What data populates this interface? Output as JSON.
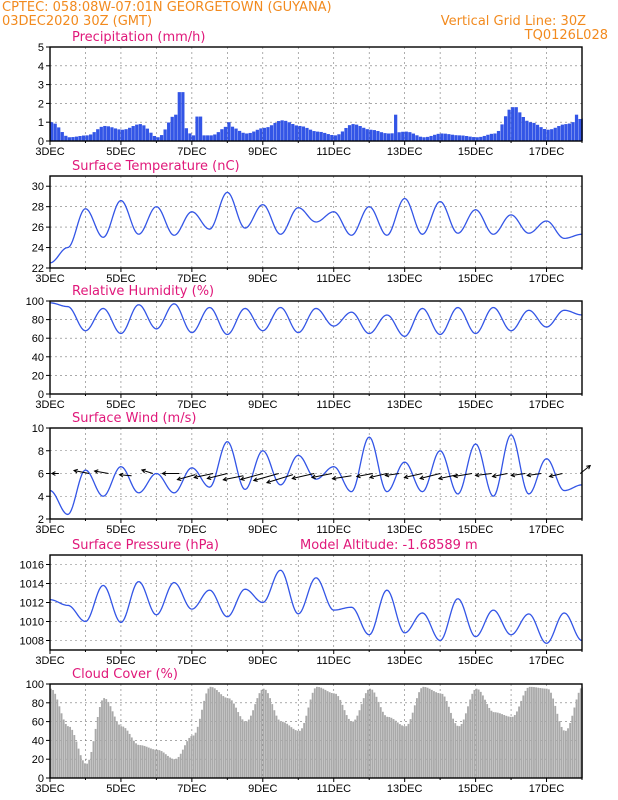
{
  "header": {
    "left_line1": "CPTEC:  058:08W-07:01N  GEORGETOWN (GUYANA)",
    "left_line2": "03DEC2020 30Z (GMT)",
    "right_line1": "Vertical Grid Line: 30Z",
    "right_line2": "TQ0126L028"
  },
  "colors": {
    "header": "#f28a1e",
    "title": "#e0187a",
    "series": "#3355e6",
    "cloud": "#a9a9a9",
    "wind_vector": "#000000"
  },
  "x_axis": {
    "start_day": 3,
    "end_day": 18,
    "tick_labels": [
      "3DEC",
      "5DEC",
      "7DEC",
      "9DEC",
      "11DEC",
      "13DEC",
      "15DEC",
      "17DEC"
    ],
    "tick_days": [
      3,
      5,
      7,
      9,
      11,
      13,
      15,
      17
    ]
  },
  "chart_data": [
    {
      "id": "precip",
      "type": "bar",
      "title": "Precipitation (mm/h)",
      "ylim": [
        0,
        5
      ],
      "yticks": [
        0,
        1,
        2,
        3,
        4,
        5
      ],
      "grid": true,
      "x_unit": "day of December 2020",
      "x": [
        3.0,
        3.5,
        4.0,
        4.5,
        5.0,
        5.5,
        6.0,
        6.5,
        7.0,
        7.5,
        8.0,
        8.5,
        9.0,
        9.5,
        10.0,
        10.5,
        11.0,
        11.5,
        12.0,
        12.5,
        13.0,
        13.5,
        14.0,
        14.5,
        15.0,
        15.5,
        16.0,
        16.5,
        17.0,
        17.5,
        18.0
      ],
      "values": [
        1.0,
        0.2,
        0.3,
        0.8,
        0.6,
        0.9,
        0.2,
        1.4,
        0.3,
        0.3,
        0.8,
        0.4,
        0.7,
        1.1,
        0.8,
        0.5,
        0.3,
        0.9,
        0.6,
        0.4,
        0.5,
        0.2,
        0.4,
        0.3,
        0.2,
        0.4,
        1.8,
        1.0,
        0.6,
        0.9,
        1.2
      ],
      "peak_x": [
        6.65,
        7.15,
        8.0,
        12.7,
        16.1,
        17.8
      ],
      "peak_values": [
        2.6,
        1.3,
        1.0,
        1.4,
        1.8,
        1.4
      ]
    },
    {
      "id": "temp",
      "type": "line",
      "title": "Surface Temperature (nC)",
      "ylim": [
        22,
        31
      ],
      "yticks": [
        22,
        24,
        26,
        28,
        30
      ],
      "grid": true,
      "x": [
        3.0,
        3.5,
        4.0,
        4.5,
        5.0,
        5.5,
        6.0,
        6.5,
        7.0,
        7.5,
        8.0,
        8.5,
        9.0,
        9.5,
        10.0,
        10.5,
        11.0,
        11.5,
        12.0,
        12.5,
        13.0,
        13.5,
        14.0,
        14.5,
        15.0,
        15.5,
        16.0,
        16.5,
        17.0,
        17.5,
        18.0
      ],
      "values": [
        22.5,
        24.0,
        27.8,
        25.0,
        28.6,
        25.3,
        28.0,
        25.2,
        27.5,
        25.8,
        29.4,
        25.9,
        28.2,
        25.3,
        27.9,
        26.5,
        27.5,
        25.2,
        28.0,
        25.2,
        28.8,
        25.3,
        28.5,
        25.4,
        27.7,
        25.3,
        27.2,
        25.4,
        26.6,
        24.9,
        25.3
      ]
    },
    {
      "id": "rh",
      "type": "line",
      "title": "Relative Humidity (%)",
      "ylim": [
        0,
        100
      ],
      "yticks": [
        0,
        20,
        40,
        60,
        80,
        100
      ],
      "grid": true,
      "x": [
        3.0,
        3.5,
        4.0,
        4.5,
        5.0,
        5.5,
        6.0,
        6.5,
        7.0,
        7.5,
        8.0,
        8.5,
        9.0,
        9.5,
        10.0,
        10.5,
        11.0,
        11.5,
        12.0,
        12.5,
        13.0,
        13.5,
        14.0,
        14.5,
        15.0,
        15.5,
        16.0,
        16.5,
        17.0,
        17.5,
        18.0
      ],
      "values": [
        98,
        94,
        68,
        92,
        65,
        96,
        70,
        97,
        66,
        93,
        64,
        92,
        68,
        93,
        66,
        92,
        73,
        88,
        65,
        85,
        62,
        92,
        64,
        93,
        65,
        93,
        68,
        90,
        72,
        90,
        85
      ]
    },
    {
      "id": "wind",
      "type": "line",
      "title": "Surface Wind (m/s)",
      "ylim": [
        2,
        10
      ],
      "yticks": [
        2,
        4,
        6,
        8,
        10
      ],
      "grid": true,
      "x": [
        3.0,
        3.5,
        4.0,
        4.5,
        5.0,
        5.5,
        6.0,
        6.5,
        7.0,
        7.5,
        8.0,
        8.5,
        9.0,
        9.5,
        10.0,
        10.5,
        11.0,
        11.5,
        12.0,
        12.5,
        13.0,
        13.5,
        14.0,
        14.5,
        15.0,
        15.5,
        16.0,
        16.5,
        17.0,
        17.5,
        18.0
      ],
      "values": [
        4.5,
        2.4,
        6.3,
        4.0,
        6.6,
        4.3,
        6.0,
        4.3,
        6.5,
        4.8,
        8.8,
        4.6,
        8.0,
        5.0,
        7.6,
        5.5,
        6.6,
        4.4,
        9.2,
        4.4,
        7.0,
        4.4,
        8.0,
        4.2,
        8.6,
        4.0,
        9.4,
        4.2,
        7.3,
        4.5,
        5.0
      ],
      "vectors": {
        "x": [
          3.25,
          4.1,
          4.65,
          5.3,
          5.9,
          6.65,
          7.1,
          7.6,
          8.0,
          8.45,
          9.0,
          9.45,
          9.85,
          10.45,
          10.95,
          11.5,
          12.1,
          12.5,
          12.85,
          13.5,
          14.0,
          14.5,
          14.9,
          15.45,
          15.9,
          16.4,
          16.85,
          17.45,
          17.95
        ],
        "y": [
          6.0,
          6.0,
          6.0,
          5.8,
          6.0,
          6.0,
          5.9,
          6.0,
          6.0,
          5.8,
          6.0,
          6.0,
          5.9,
          6.0,
          6.0,
          5.8,
          6.0,
          6.0,
          6.0,
          6.0,
          6.0,
          5.9,
          6.0,
          6.0,
          6.0,
          6.0,
          6.0,
          6.0,
          6.0
        ],
        "u": [
          -0.7,
          -1.5,
          -1.4,
          -1.2,
          -1.1,
          -1.7,
          -1.8,
          -1.9,
          -2.0,
          -2.0,
          -2.2,
          -2.5,
          -2.6,
          -2.2,
          -2.0,
          -1.9,
          -1.6,
          -1.7,
          -1.4,
          -1.8,
          -2.0,
          -1.9,
          -1.8,
          -1.6,
          -1.5,
          -1.4,
          -1.4,
          -1.3,
          1.0
        ],
        "v": [
          0.0,
          0.3,
          0.25,
          0.1,
          0.35,
          0.0,
          -0.5,
          -0.4,
          -0.5,
          -0.4,
          -0.6,
          -0.7,
          -0.8,
          -0.5,
          -0.4,
          -0.3,
          -0.3,
          -0.4,
          -0.2,
          -0.4,
          -0.5,
          -0.4,
          -0.3,
          -0.2,
          -0.3,
          -0.2,
          -0.2,
          -0.3,
          0.8
        ]
      }
    },
    {
      "id": "pres",
      "type": "line",
      "title": "Surface Pressure (hPa)",
      "title_right": "Model Altitude: -1.68589 m",
      "ylim": [
        1007,
        1017
      ],
      "yticks": [
        1008,
        1010,
        1012,
        1014,
        1016
      ],
      "grid": true,
      "x": [
        3.0,
        3.5,
        4.0,
        4.5,
        5.0,
        5.5,
        6.0,
        6.5,
        7.0,
        7.5,
        8.0,
        8.5,
        9.0,
        9.5,
        10.0,
        10.5,
        11.0,
        11.5,
        12.0,
        12.5,
        13.0,
        13.5,
        14.0,
        14.5,
        15.0,
        15.5,
        16.0,
        16.5,
        17.0,
        17.5,
        18.0
      ],
      "values": [
        1012.3,
        1011.7,
        1010.0,
        1013.8,
        1009.9,
        1014.2,
        1010.7,
        1014.1,
        1011.3,
        1013.3,
        1010.5,
        1013.4,
        1012.0,
        1015.4,
        1010.8,
        1014.6,
        1011.2,
        1011.5,
        1008.6,
        1013.3,
        1008.8,
        1010.9,
        1008.0,
        1012.4,
        1008.4,
        1011.2,
        1008.6,
        1010.8,
        1007.7,
        1010.9,
        1008.0
      ]
    },
    {
      "id": "cloud",
      "type": "bar",
      "title": "Cloud Cover (%)",
      "ylim": [
        0,
        100
      ],
      "yticks": [
        0,
        20,
        40,
        60,
        80,
        100
      ],
      "grid": true,
      "x": [
        3.0,
        3.5,
        4.0,
        4.5,
        5.0,
        5.5,
        6.0,
        6.5,
        7.0,
        7.5,
        8.0,
        8.5,
        9.0,
        9.5,
        10.0,
        10.5,
        11.0,
        11.5,
        12.0,
        12.5,
        13.0,
        13.5,
        14.0,
        14.5,
        15.0,
        15.5,
        16.0,
        16.5,
        17.0,
        17.5,
        18.0
      ],
      "values": [
        95,
        55,
        15,
        85,
        55,
        35,
        30,
        20,
        45,
        97,
        85,
        60,
        95,
        60,
        50,
        97,
        90,
        60,
        95,
        65,
        55,
        97,
        90,
        55,
        95,
        70,
        65,
        97,
        95,
        50,
        97
      ]
    }
  ]
}
